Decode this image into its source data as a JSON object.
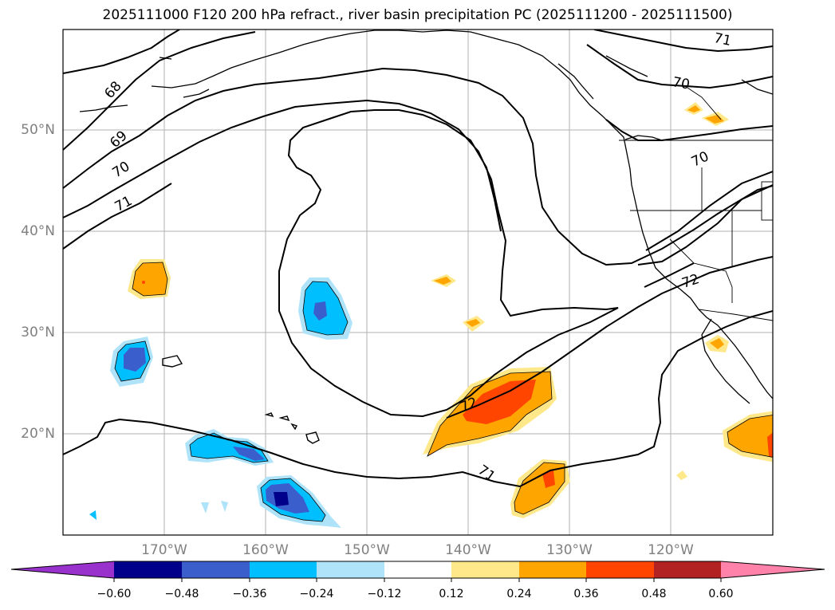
{
  "title": "2025111000 F120 200 hPa refract., river basin precipitation PC (2025111200 - 2025111500)",
  "map": {
    "lat_labels": [
      "50°N",
      "40°N",
      "30°N",
      "20°N"
    ],
    "lon_labels": [
      "170°W",
      "160°W",
      "150°W",
      "140°W",
      "130°W",
      "120°W"
    ],
    "contour_labels": [
      "68",
      "69",
      "70",
      "71",
      "71",
      "70",
      "70",
      "72",
      "72",
      "71"
    ]
  },
  "colorbar": {
    "ticks": [
      "−0.60",
      "−0.48",
      "−0.36",
      "−0.24",
      "−0.12",
      "0.12",
      "0.24",
      "0.36",
      "0.48",
      "0.60"
    ],
    "colors": [
      "#9932cc",
      "#00008b",
      "#3a5fcd",
      "#00bfff",
      "#aee3fa",
      "#ffffff",
      "#ffe88a",
      "#ffa500",
      "#ff4500",
      "#b22222",
      "#ff82ab"
    ]
  },
  "chart_data": {
    "type": "heatmap",
    "title": "2025111000 F120 200 hPa refract., river basin precipitation PC (2025111200 - 2025111500)",
    "x_axis": {
      "range": [
        -180,
        -110
      ],
      "ticks": [
        -170,
        -160,
        -150,
        -140,
        -130,
        -120
      ],
      "unit": "degrees longitude"
    },
    "y_axis": {
      "range": [
        10,
        60
      ],
      "ticks": [
        20,
        30,
        40,
        50
      ],
      "unit": "degrees latitude"
    },
    "contour_field": "200 hPa refractivity",
    "contour_levels": [
      68,
      69,
      70,
      71,
      72
    ],
    "fill_field": "river basin precipitation PC",
    "fill_levels": [
      -0.6,
      -0.48,
      -0.36,
      -0.24,
      -0.12,
      0.12,
      0.24,
      0.36,
      0.48,
      0.6
    ],
    "colorbar_extend": "both"
  }
}
